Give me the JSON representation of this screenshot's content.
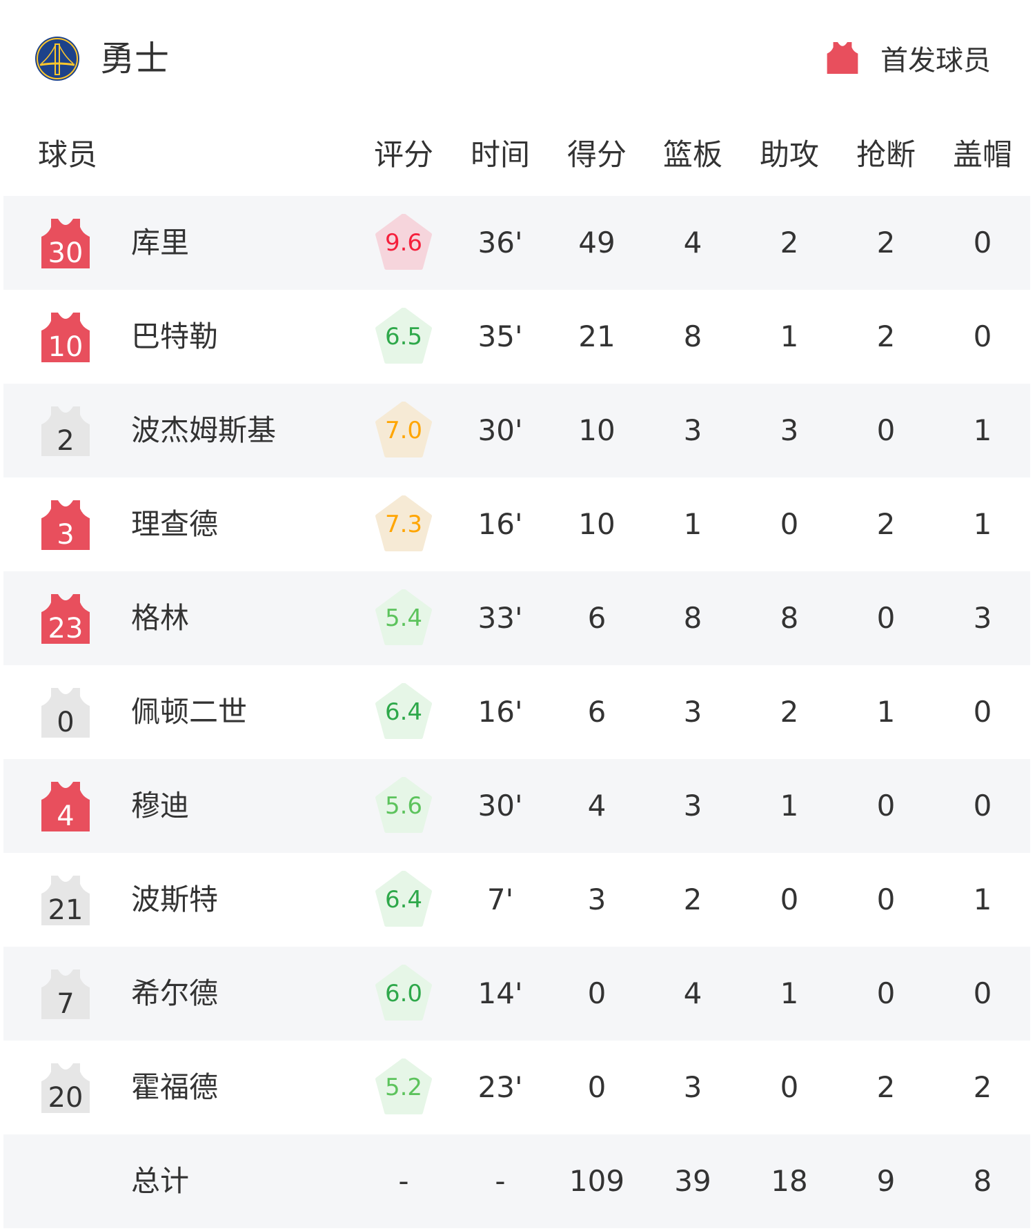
{
  "header": {
    "team_name": "勇士",
    "team_logo": "warriors-bridge-logo",
    "legend_label": "首发球员",
    "legend_icon": "jersey-icon"
  },
  "columns": [
    "球员",
    "评分",
    "时间",
    "得分",
    "篮板",
    "助攻",
    "抢断",
    "盖帽"
  ],
  "colors": {
    "starter_jersey": "#e84f5d",
    "bench_jersey": "#e6e6e6",
    "row_alt_bg": "#f5f6f8",
    "rating_red": "#f5203c",
    "rating_red_bg": "#f6d5dc",
    "rating_green": "#2ea84a",
    "rating_light_green": "#5cc35c",
    "rating_green_bg": "#e6f6e7",
    "rating_orange": "#ffa500",
    "rating_orange_bg": "#f6ead5"
  },
  "players": [
    {
      "number": "30",
      "name": "库里",
      "starter": true,
      "rating": "9.6",
      "rating_level": "red",
      "time": "36'",
      "pts": "49",
      "reb": "4",
      "ast": "2",
      "stl": "2",
      "blk": "0"
    },
    {
      "number": "10",
      "name": "巴特勒",
      "starter": true,
      "rating": "6.5",
      "rating_level": "green",
      "time": "35'",
      "pts": "21",
      "reb": "8",
      "ast": "1",
      "stl": "2",
      "blk": "0"
    },
    {
      "number": "2",
      "name": "波杰姆斯基",
      "starter": false,
      "rating": "7.0",
      "rating_level": "orange",
      "time": "30'",
      "pts": "10",
      "reb": "3",
      "ast": "3",
      "stl": "0",
      "blk": "1"
    },
    {
      "number": "3",
      "name": "理查德",
      "starter": true,
      "rating": "7.3",
      "rating_level": "orange",
      "time": "16'",
      "pts": "10",
      "reb": "1",
      "ast": "0",
      "stl": "2",
      "blk": "1"
    },
    {
      "number": "23",
      "name": "格林",
      "starter": true,
      "rating": "5.4",
      "rating_level": "light-green",
      "time": "33'",
      "pts": "6",
      "reb": "8",
      "ast": "8",
      "stl": "0",
      "blk": "3"
    },
    {
      "number": "0",
      "name": "佩顿二世",
      "starter": false,
      "rating": "6.4",
      "rating_level": "green",
      "time": "16'",
      "pts": "6",
      "reb": "3",
      "ast": "2",
      "stl": "1",
      "blk": "0"
    },
    {
      "number": "4",
      "name": "穆迪",
      "starter": true,
      "rating": "5.6",
      "rating_level": "light-green",
      "time": "30'",
      "pts": "4",
      "reb": "3",
      "ast": "1",
      "stl": "0",
      "blk": "0"
    },
    {
      "number": "21",
      "name": "波斯特",
      "starter": false,
      "rating": "6.4",
      "rating_level": "green",
      "time": "7'",
      "pts": "3",
      "reb": "2",
      "ast": "0",
      "stl": "0",
      "blk": "1"
    },
    {
      "number": "7",
      "name": "希尔德",
      "starter": false,
      "rating": "6.0",
      "rating_level": "green",
      "time": "14'",
      "pts": "0",
      "reb": "4",
      "ast": "1",
      "stl": "0",
      "blk": "0"
    },
    {
      "number": "20",
      "name": "霍福德",
      "starter": false,
      "rating": "5.2",
      "rating_level": "light-green",
      "time": "23'",
      "pts": "0",
      "reb": "3",
      "ast": "0",
      "stl": "2",
      "blk": "2"
    }
  ],
  "totals": {
    "label": "总计",
    "rating": "-",
    "time": "-",
    "pts": "109",
    "reb": "39",
    "ast": "18",
    "stl": "9",
    "blk": "8"
  }
}
